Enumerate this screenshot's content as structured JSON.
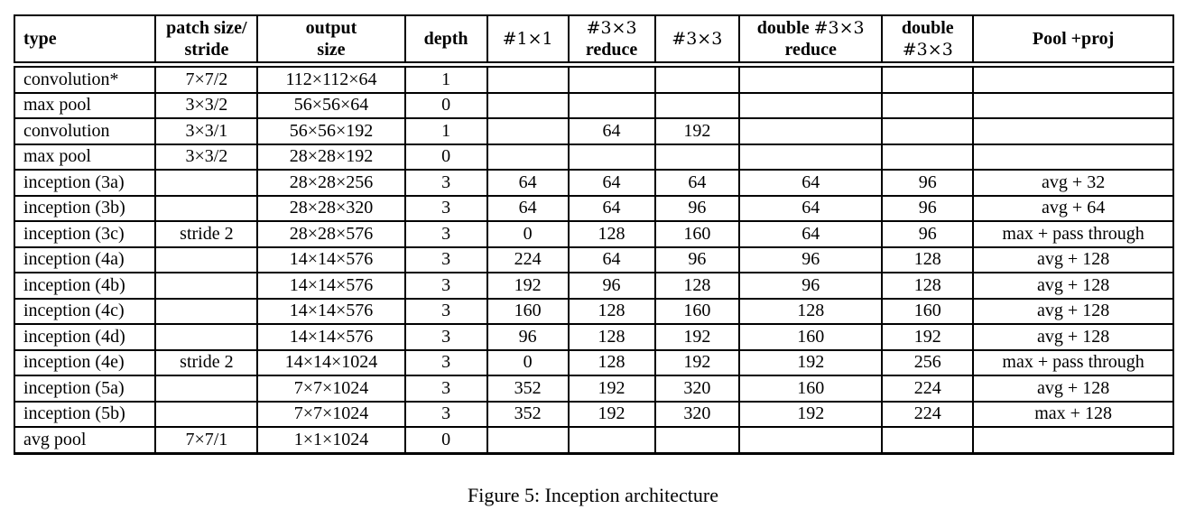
{
  "figure": {
    "caption": "Figure 5: Inception architecture"
  },
  "colors": {
    "text": "#000000",
    "border": "#000000",
    "background": "#ffffff"
  },
  "table": {
    "columns": [
      {
        "id": "type",
        "width": "11.8%",
        "align": "left",
        "header": [
          [
            [
              "b",
              "type"
            ]
          ]
        ]
      },
      {
        "id": "patch-size-stride",
        "width": "8.8%",
        "align": "center",
        "header": [
          [
            [
              "b",
              "patch size/"
            ]
          ],
          [
            [
              "b",
              "stride"
            ]
          ]
        ]
      },
      {
        "id": "output-size",
        "width": "12.9%",
        "align": "center",
        "header": [
          [
            [
              "b",
              "output"
            ]
          ],
          [
            [
              "b",
              "size"
            ]
          ]
        ]
      },
      {
        "id": "depth",
        "width": "7.0%",
        "align": "center",
        "header": [
          [
            [
              "b",
              "depth"
            ]
          ]
        ]
      },
      {
        "id": "num-1x1",
        "width": "6.9%",
        "align": "center",
        "header": [
          [
            [
              "m",
              "#1×1"
            ]
          ]
        ]
      },
      {
        "id": "num-3x3-reduce",
        "width": "7.4%",
        "align": "center",
        "header": [
          [
            [
              "m",
              "#3×3"
            ]
          ],
          [
            [
              "b",
              "reduce"
            ]
          ]
        ]
      },
      {
        "id": "num-3x3",
        "width": "7.2%",
        "align": "center",
        "header": [
          [
            [
              "m",
              "#3×3"
            ]
          ]
        ]
      },
      {
        "id": "double-3x3-reduce",
        "width": "12.5%",
        "align": "center",
        "header": [
          [
            [
              "b",
              "double "
            ],
            [
              "m",
              "#3×3"
            ]
          ],
          [
            [
              "b",
              "reduce"
            ]
          ]
        ]
      },
      {
        "id": "double-3x3",
        "width": "7.8%",
        "align": "center",
        "header": [
          [
            [
              "b",
              "double"
            ]
          ],
          [
            [
              "m",
              "#3×3"
            ]
          ]
        ]
      },
      {
        "id": "pool-proj",
        "width": "17.7%",
        "align": "center",
        "header": [
          [
            [
              "b",
              "Pool +proj"
            ]
          ]
        ]
      }
    ],
    "rows": [
      {
        "cells": [
          "convolution*",
          "7×7/2",
          "112×112×64",
          "1",
          "",
          "",
          "",
          "",
          "",
          ""
        ]
      },
      {
        "cells": [
          "max pool",
          "3×3/2",
          "56×56×64",
          "0",
          "",
          "",
          "",
          "",
          "",
          ""
        ]
      },
      {
        "cells": [
          "convolution",
          "3×3/1",
          "56×56×192",
          "1",
          "",
          "64",
          "192",
          "",
          "",
          ""
        ]
      },
      {
        "cells": [
          "max pool",
          "3×3/2",
          "28×28×192",
          "0",
          "",
          "",
          "",
          "",
          "",
          ""
        ]
      },
      {
        "cells": [
          "inception (3a)",
          "",
          "28×28×256",
          "3",
          "64",
          "64",
          "64",
          "64",
          "96",
          "avg + 32"
        ]
      },
      {
        "cells": [
          "inception (3b)",
          "",
          "28×28×320",
          "3",
          "64",
          "64",
          "96",
          "64",
          "96",
          "avg + 64"
        ]
      },
      {
        "cells": [
          "inception (3c)",
          "stride 2",
          "28×28×576",
          "3",
          "0",
          "128",
          "160",
          "64",
          "96",
          "max + pass through"
        ]
      },
      {
        "cells": [
          "inception (4a)",
          "",
          "14×14×576",
          "3",
          "224",
          "64",
          "96",
          "96",
          "128",
          "avg + 128"
        ]
      },
      {
        "cells": [
          "inception (4b)",
          "",
          "14×14×576",
          "3",
          "192",
          "96",
          "128",
          "96",
          "128",
          "avg + 128"
        ]
      },
      {
        "cells": [
          "inception (4c)",
          "",
          "14×14×576",
          "3",
          "160",
          "128",
          "160",
          "128",
          "160",
          "avg + 128"
        ]
      },
      {
        "cells": [
          "inception (4d)",
          "",
          "14×14×576",
          "3",
          "96",
          "128",
          "192",
          "160",
          "192",
          "avg + 128"
        ]
      },
      {
        "cells": [
          "inception (4e)",
          "stride 2",
          "14×14×1024",
          "3",
          "0",
          "128",
          "192",
          "192",
          "256",
          "max + pass through"
        ]
      },
      {
        "cells": [
          "inception (5a)",
          "",
          "7×7×1024",
          "3",
          "352",
          "192",
          "320",
          "160",
          "224",
          "avg + 128"
        ]
      },
      {
        "cells": [
          "inception (5b)",
          "",
          "7×7×1024",
          "3",
          "352",
          "192",
          "320",
          "192",
          "224",
          "max + 128"
        ]
      },
      {
        "cells": [
          "avg pool",
          "7×7/1",
          "1×1×1024",
          "0",
          "",
          "",
          "",
          "",
          "",
          ""
        ]
      }
    ]
  }
}
